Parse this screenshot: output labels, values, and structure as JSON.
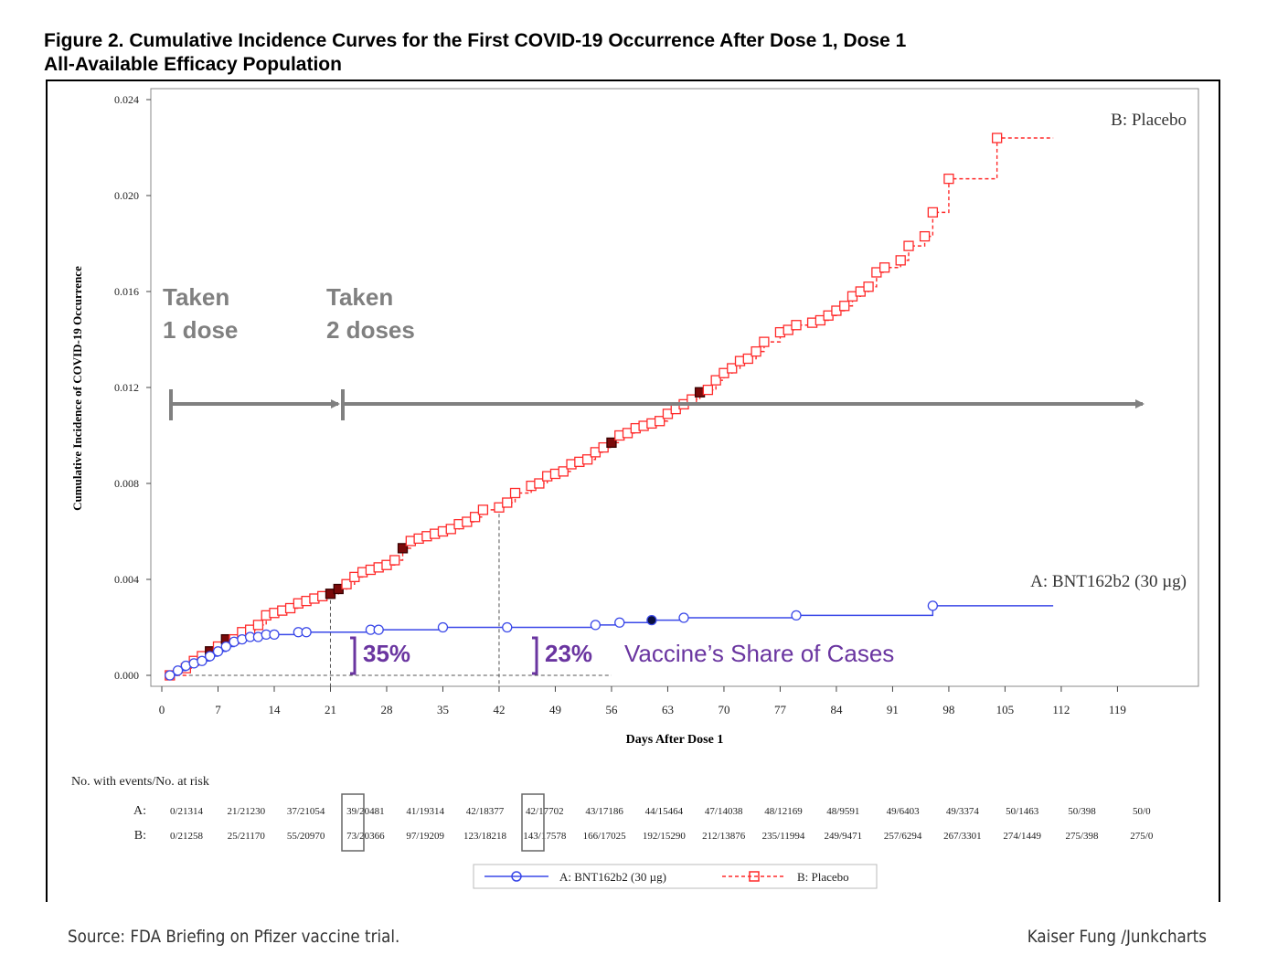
{
  "figure": {
    "title_line1": "Figure 2. Cumulative Incidence Curves for the First COVID-19 Occurrence After Dose 1, Dose 1",
    "title_line2": "All-Available Efficacy Population"
  },
  "footer": {
    "source": "Source: FDA Briefing on Pfizer vaccine trial.",
    "credit": "Kaiser Fung /Junkcharts"
  },
  "annotations": {
    "dose1_line1": "Taken",
    "dose1_line2": "1 dose",
    "dose2_line1": "Taken",
    "dose2_line2": "2 doses",
    "pct_day21": "35%",
    "pct_day42": "23%",
    "share_label": "Vaccine’s Share of Cases"
  },
  "colors": {
    "vaccine": "#3a48e8",
    "placebo": "#ff2a2a",
    "annotation_gray": "#808080",
    "annotation_purple": "#6a35a0"
  },
  "chart_data": {
    "type": "line",
    "xlabel": "Days After Dose 1",
    "ylabel": "Cumulative Incidence of COVID-19 Occurrence",
    "xlim": [
      0,
      119
    ],
    "ylim": [
      0,
      0.024
    ],
    "x_ticks": [
      0,
      7,
      14,
      21,
      28,
      35,
      42,
      49,
      56,
      63,
      70,
      77,
      84,
      91,
      98,
      105,
      112,
      119
    ],
    "y_ticks": [
      "0.000",
      "0.004",
      "0.008",
      "0.012",
      "0.016",
      "0.020",
      "0.024"
    ],
    "series": [
      {
        "name": "A: BNT162b2 (30 µg)",
        "style": "solid",
        "marker": "circle",
        "end_x": 111,
        "points": [
          [
            1,
            0.0
          ],
          [
            2,
            0.0002
          ],
          [
            3,
            0.0004
          ],
          [
            4,
            0.0005
          ],
          [
            5,
            0.0006
          ],
          [
            6,
            0.0008
          ],
          [
            7,
            0.001
          ],
          [
            8,
            0.0012
          ],
          [
            9,
            0.0014
          ],
          [
            10,
            0.0015
          ],
          [
            11,
            0.0016
          ],
          [
            12,
            0.0016
          ],
          [
            13,
            0.0017
          ],
          [
            14,
            0.0017
          ],
          [
            17,
            0.0018
          ],
          [
            18,
            0.0018
          ],
          [
            26,
            0.0019
          ],
          [
            27,
            0.0019
          ],
          [
            35,
            0.002
          ],
          [
            43,
            0.002
          ],
          [
            54,
            0.0021
          ],
          [
            57,
            0.0022
          ],
          [
            61,
            0.0023
          ],
          [
            65,
            0.0024
          ],
          [
            79,
            0.0025
          ],
          [
            96,
            0.0029
          ]
        ]
      },
      {
        "name": "B: Placebo",
        "style": "dashed",
        "marker": "square",
        "end_x": 111,
        "points": [
          [
            1,
            0.0
          ],
          [
            3,
            0.0003
          ],
          [
            4,
            0.0006
          ],
          [
            5,
            0.0008
          ],
          [
            6,
            0.001
          ],
          [
            7,
            0.0012
          ],
          [
            8,
            0.0015
          ],
          [
            9,
            0.0015
          ],
          [
            10,
            0.0018
          ],
          [
            11,
            0.0019
          ],
          [
            12,
            0.0021
          ],
          [
            13,
            0.0025
          ],
          [
            14,
            0.0026
          ],
          [
            15,
            0.0027
          ],
          [
            16,
            0.0028
          ],
          [
            17,
            0.003
          ],
          [
            18,
            0.0031
          ],
          [
            19,
            0.0032
          ],
          [
            20,
            0.0033
          ],
          [
            21,
            0.0034
          ],
          [
            22,
            0.0036
          ],
          [
            23,
            0.0038
          ],
          [
            24,
            0.0041
          ],
          [
            25,
            0.0043
          ],
          [
            26,
            0.0044
          ],
          [
            27,
            0.0045
          ],
          [
            28,
            0.0046
          ],
          [
            29,
            0.0048
          ],
          [
            30,
            0.0053
          ],
          [
            31,
            0.0056
          ],
          [
            32,
            0.0057
          ],
          [
            33,
            0.0058
          ],
          [
            34,
            0.0059
          ],
          [
            35,
            0.006
          ],
          [
            36,
            0.0061
          ],
          [
            37,
            0.0063
          ],
          [
            38,
            0.0064
          ],
          [
            39,
            0.0066
          ],
          [
            40,
            0.0069
          ],
          [
            42,
            0.007
          ],
          [
            43,
            0.0072
          ],
          [
            44,
            0.0076
          ],
          [
            46,
            0.0079
          ],
          [
            47,
            0.008
          ],
          [
            48,
            0.0083
          ],
          [
            49,
            0.0084
          ],
          [
            50,
            0.0085
          ],
          [
            51,
            0.0088
          ],
          [
            52,
            0.0089
          ],
          [
            53,
            0.009
          ],
          [
            54,
            0.0093
          ],
          [
            55,
            0.0095
          ],
          [
            56,
            0.0097
          ],
          [
            57,
            0.01
          ],
          [
            58,
            0.0101
          ],
          [
            59,
            0.0103
          ],
          [
            60,
            0.0104
          ],
          [
            61,
            0.0105
          ],
          [
            62,
            0.0106
          ],
          [
            63,
            0.0109
          ],
          [
            64,
            0.0111
          ],
          [
            65,
            0.0113
          ],
          [
            66,
            0.0115
          ],
          [
            67,
            0.0118
          ],
          [
            68,
            0.0119
          ],
          [
            69,
            0.0123
          ],
          [
            70,
            0.0126
          ],
          [
            71,
            0.0128
          ],
          [
            72,
            0.0131
          ],
          [
            73,
            0.0132
          ],
          [
            74,
            0.0135
          ],
          [
            75,
            0.0139
          ],
          [
            77,
            0.0143
          ],
          [
            78,
            0.0144
          ],
          [
            79,
            0.0146
          ],
          [
            81,
            0.0147
          ],
          [
            82,
            0.0148
          ],
          [
            83,
            0.015
          ],
          [
            84,
            0.0152
          ],
          [
            85,
            0.0154
          ],
          [
            86,
            0.0158
          ],
          [
            87,
            0.016
          ],
          [
            88,
            0.0162
          ],
          [
            89,
            0.0168
          ],
          [
            90,
            0.017
          ],
          [
            92,
            0.0173
          ],
          [
            93,
            0.0179
          ],
          [
            95,
            0.0183
          ],
          [
            96,
            0.0193
          ],
          [
            98,
            0.0207
          ],
          [
            104,
            0.0224
          ]
        ]
      }
    ],
    "filled_markers": {
      "B": [
        6,
        8,
        21,
        22,
        30,
        56,
        67
      ],
      "A": [
        61
      ]
    },
    "end_labels": {
      "A": "A: BNT162b2 (30 µg)",
      "B": "B: Placebo"
    },
    "legend": {
      "position": "bottom",
      "entries": [
        "A: BNT162b2 (30 µg)",
        "B: Placebo"
      ]
    },
    "risk_table": {
      "title": "No. with events/No. at risk",
      "rows": [
        {
          "label": "A:",
          "values": [
            "0/21314",
            "21/21230",
            "37/21054",
            "39/20481",
            "41/19314",
            "42/18377",
            "42/17702",
            "43/17186",
            "44/15464",
            "47/14038",
            "48/12169",
            "48/9591",
            "49/6403",
            "49/3374",
            "50/1463",
            "50/398",
            "50/0"
          ]
        },
        {
          "label": "B:",
          "values": [
            "0/21258",
            "25/21170",
            "55/20970",
            "73/20366",
            "97/19209",
            "123/18218",
            "143/17578",
            "166/17025",
            "192/15290",
            "212/13876",
            "235/11994",
            "249/9471",
            "257/6294",
            "267/3301",
            "274/1449",
            "275/398",
            "275/0"
          ]
        }
      ]
    }
  }
}
